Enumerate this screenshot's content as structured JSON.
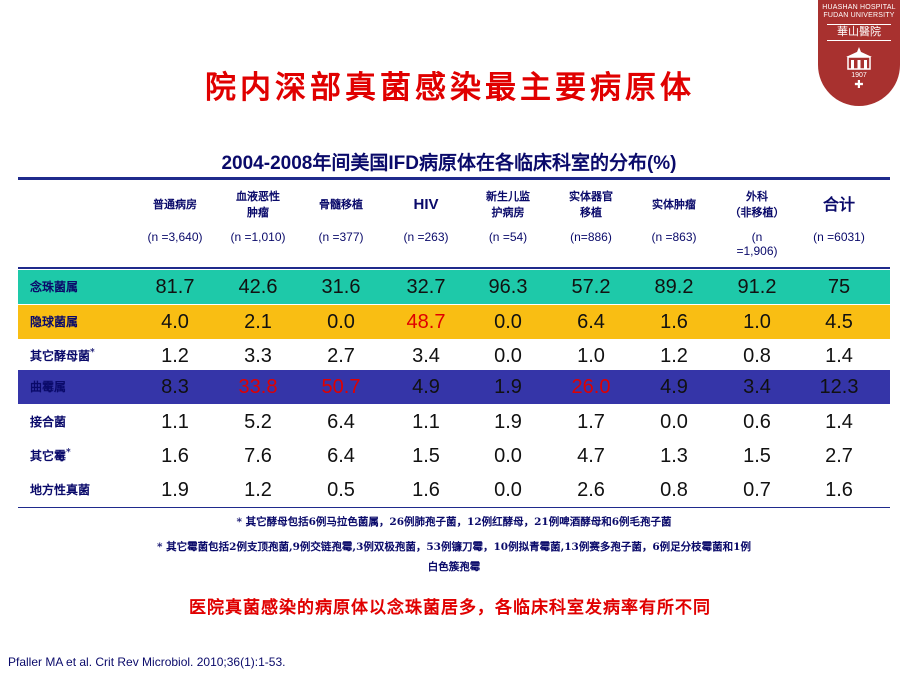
{
  "logo": {
    "line1": "HUASHAN HOSPITAL",
    "line2": "FUDAN UNIVERSITY",
    "name": "華山醫院",
    "year": "1907",
    "cross": "✚"
  },
  "title": "院内深部真菌感染最主要病原体",
  "table_title": "2004-2008年间美国IFD病原体在各临床科室的分布(%)",
  "columns": [
    {
      "name": "普通病房",
      "n": "(n =3,640)"
    },
    {
      "name": "血液恶性\n肿瘤",
      "n": "(n =1,010)"
    },
    {
      "name": "骨髓移植",
      "n": "(n =377)"
    },
    {
      "name": "HIV",
      "n": "(n =263)"
    },
    {
      "name": "新生儿监\n护病房",
      "n": "(n =54)"
    },
    {
      "name": "实体器官\n移植",
      "n": "(n=886)"
    },
    {
      "name": "实体肿瘤",
      "n": "(n =863)"
    },
    {
      "name": "外科\n（非移植）",
      "n": "(n\n=1,906)"
    },
    {
      "name": "合计",
      "n": "(n =6031)"
    }
  ],
  "rows": [
    {
      "label": "念珠菌属",
      "bg": "#1ec9a9",
      "values": [
        "81.7",
        "42.6",
        "31.6",
        "32.7",
        "96.3",
        "57.2",
        "89.2",
        "91.2",
        "75"
      ]
    },
    {
      "label": "隐球菌属",
      "bg": "#f9be13",
      "values": [
        "4.0",
        "2.1",
        "0.0",
        "48.7",
        "0.0",
        "6.4",
        "1.6",
        "1.0",
        "4.5"
      ],
      "red": [
        3
      ]
    },
    {
      "label": "其它酵母菌",
      "sup": "*",
      "bg": "#ffffff",
      "values": [
        "1.2",
        "3.3",
        "2.7",
        "3.4",
        "0.0",
        "1.0",
        "1.2",
        "0.8",
        "1.4"
      ]
    },
    {
      "label": "曲霉属",
      "bg": "#3535a8",
      "values": [
        "8.3",
        "33.8",
        "50.7",
        "4.9",
        "1.9",
        "26.0",
        "4.9",
        "3.4",
        "12.3"
      ],
      "red": [
        1,
        2,
        5
      ]
    },
    {
      "label": "接合菌",
      "bg": "#ffffff",
      "values": [
        "1.1",
        "5.2",
        "6.4",
        "1.1",
        "1.9",
        "1.7",
        "0.0",
        "0.6",
        "1.4"
      ]
    },
    {
      "label": "其它霉",
      "sup": "*",
      "bg": "#ffffff",
      "values": [
        "1.6",
        "7.6",
        "6.4",
        "1.5",
        "0.0",
        "4.7",
        "1.3",
        "1.5",
        "2.7"
      ]
    },
    {
      "label": "地方性真菌",
      "bg": "#ffffff",
      "values": [
        "1.9",
        "1.2",
        "0.5",
        "1.6",
        "0.0",
        "2.6",
        "0.8",
        "0.7",
        "1.6"
      ]
    }
  ],
  "footnotes": [
    "* 其它酵母包括6例马拉色菌属，26例肺孢子菌，12例红酵母，21例啤酒酵母和6例毛孢子菌",
    "* 其它霉菌包括2例支顶孢菌,9例交链孢霉,3例双极孢菌，53例镰刀霉，10例拟青霉菌,13例赛多孢子菌，6例足分枝霉菌和1例",
    "白色簇孢霉"
  ],
  "conclusion": "医院真菌感染的病原体以念珠菌居多，各临床科室发病率有所不同",
  "citation": "Pfaller MA et al. Crit Rev Microbiol.  2010;36(1):1-53."
}
